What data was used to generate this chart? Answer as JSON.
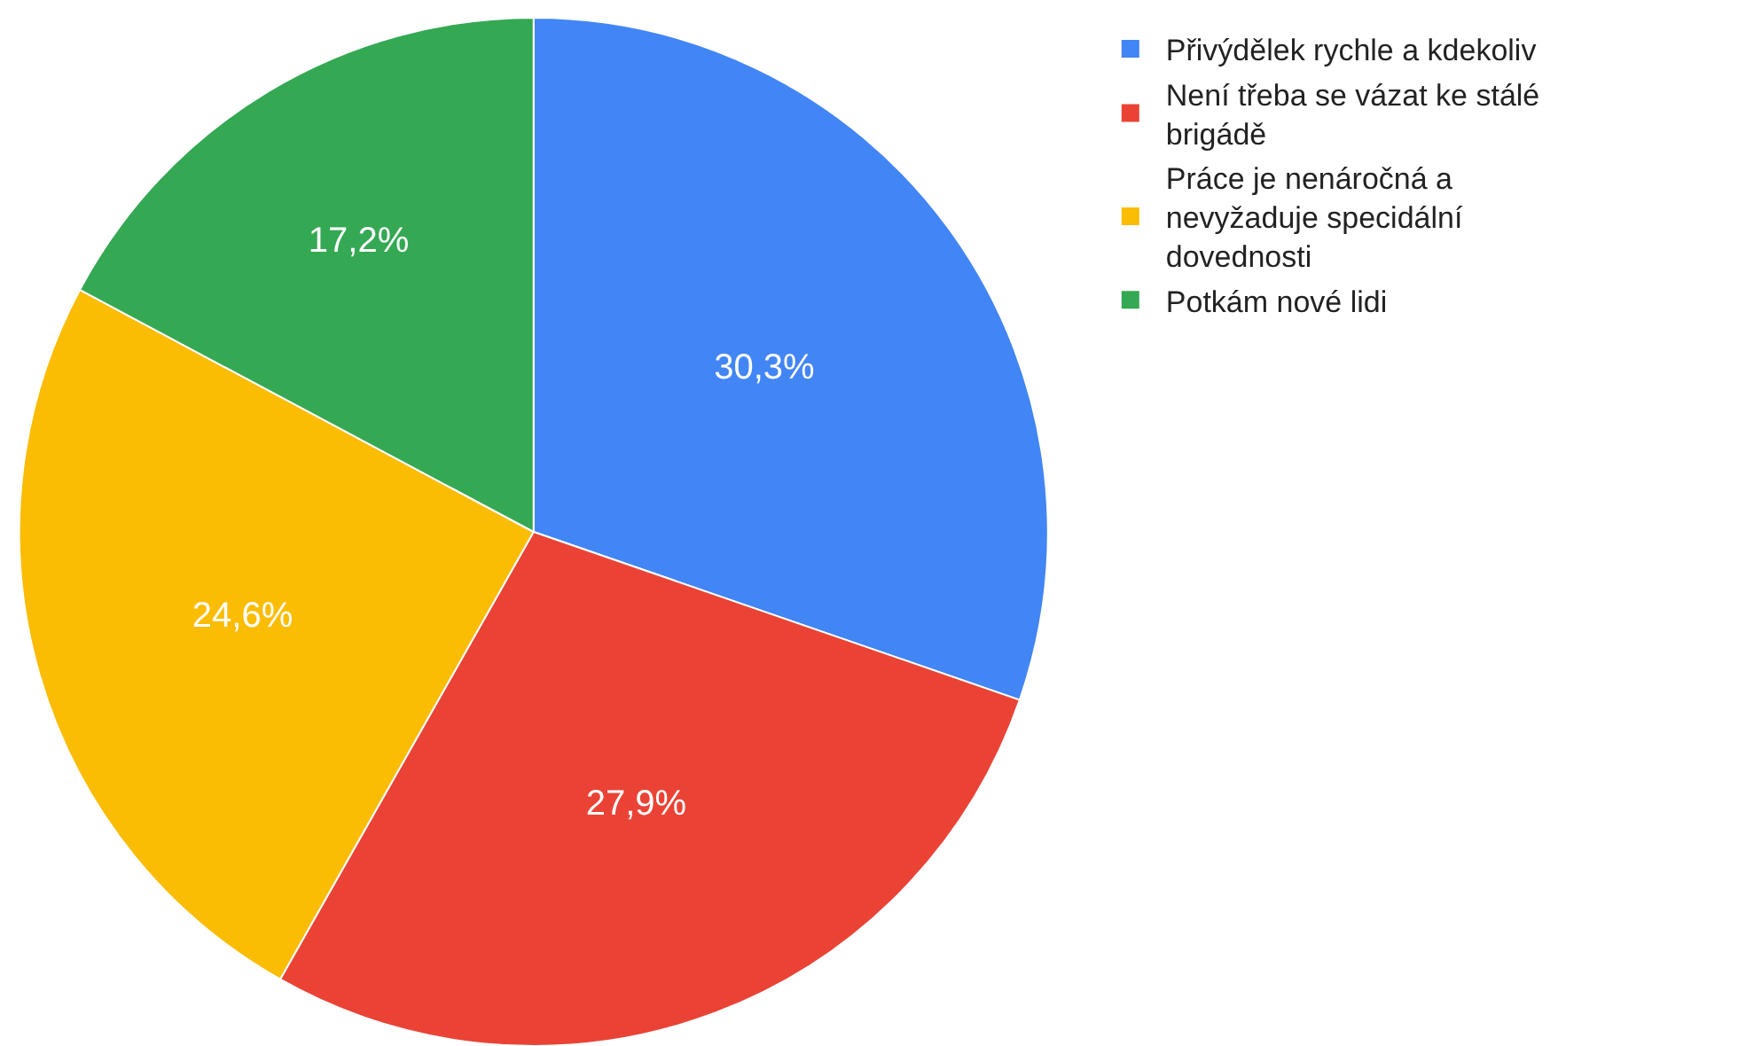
{
  "chart_data": {
    "type": "pie",
    "categories": [
      "Přivýdělek rychle a kdekoliv",
      "Není třeba se vázat ke stálé brigádě",
      "Práce je nenáročná a nevyžaduje specidální dovednosti",
      "Potkám nové lidi"
    ],
    "values": [
      30.3,
      27.9,
      24.6,
      17.2
    ],
    "colors": [
      "#4285f4",
      "#ea4335",
      "#fbbc04",
      "#34a853"
    ],
    "value_labels": [
      "30,3%",
      "27,9%",
      "24,6%",
      "17,2%"
    ],
    "legend": "top right"
  }
}
